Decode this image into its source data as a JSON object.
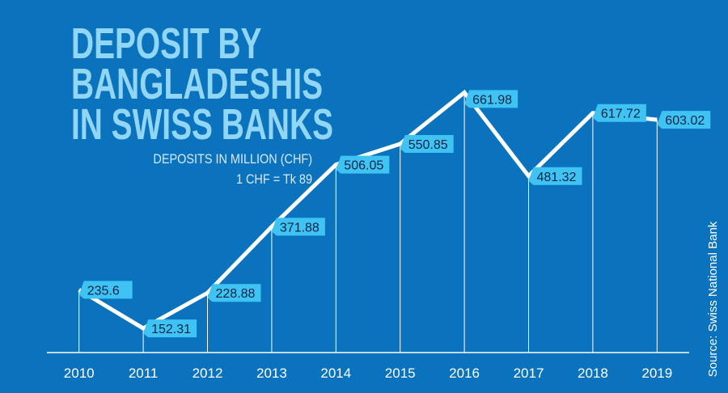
{
  "chart_data": {
    "type": "line",
    "title": [
      "DEPOSIT BY",
      "BANGLADESHIS",
      "IN SWISS BANKS"
    ],
    "subtitle": [
      "DEPOSITS IN MILLION (CHF)",
      "1 CHF = Tk 89"
    ],
    "source": "Source: Swiss National Bank",
    "categories": [
      "2010",
      "2011",
      "2012",
      "2013",
      "2014",
      "2015",
      "2016",
      "2017",
      "2018",
      "2019"
    ],
    "values": [
      235.6,
      152.31,
      228.88,
      371.88,
      506.05,
      550.85,
      661.98,
      481.32,
      617.72,
      603.02
    ],
    "color": "#ffffff",
    "label_color": "#3ec3f3",
    "ylim": [
      100,
      750
    ]
  }
}
